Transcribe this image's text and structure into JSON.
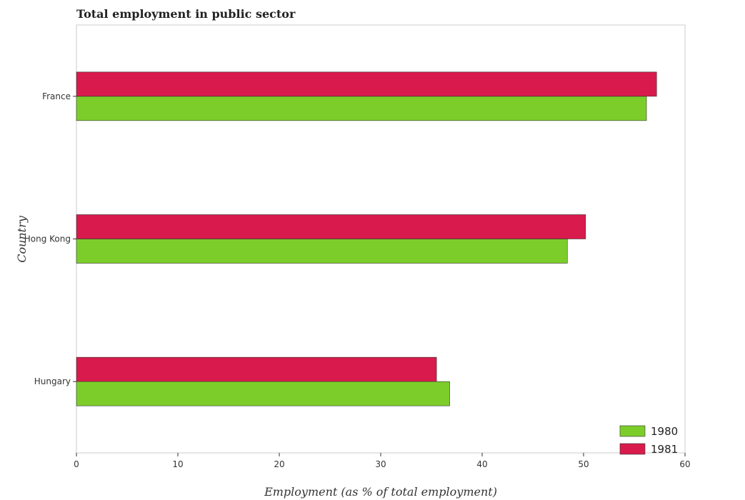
{
  "chart_data": {
    "type": "bar",
    "orientation": "horizontal",
    "title": "Total employment in public sector",
    "xlabel": "Employment (as % of total employment)",
    "ylabel": "Country",
    "categories": [
      "France",
      "Hong Kong",
      "Hungary"
    ],
    "series": [
      {
        "name": "1980",
        "color": "#7ccd2a",
        "values": [
          56.2,
          48.4,
          36.8
        ]
      },
      {
        "name": "1981",
        "color": "#d81b4c",
        "values": [
          57.2,
          50.2,
          35.5
        ]
      }
    ],
    "xlim": [
      0,
      60
    ],
    "xticks": [
      0,
      10,
      20,
      30,
      40,
      50,
      60
    ],
    "grid": false,
    "legend_position": "bottom-right"
  }
}
